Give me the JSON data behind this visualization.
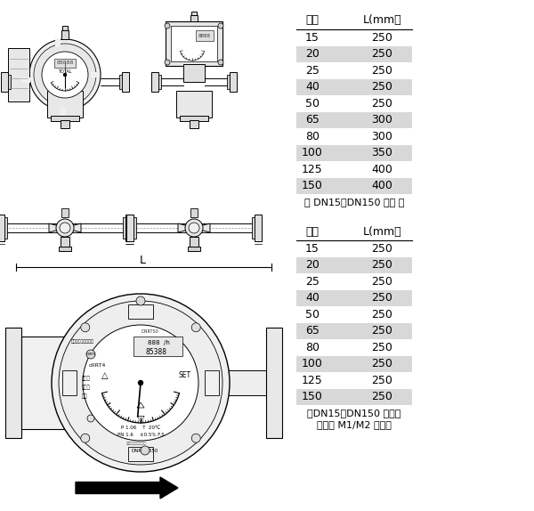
{
  "table1_header": [
    "口径",
    "L(mm）"
  ],
  "table1_rows": [
    [
      "15",
      "250"
    ],
    [
      "20",
      "250"
    ],
    [
      "25",
      "250"
    ],
    [
      "40",
      "250"
    ],
    [
      "50",
      "250"
    ],
    [
      "65",
      "300"
    ],
    [
      "80",
      "300"
    ],
    [
      "100",
      "350"
    ],
    [
      "125",
      "400"
    ],
    [
      "150",
      "400"
    ]
  ],
  "table1_note": "（ DN15～DN150 气体 ）",
  "table2_header": [
    "口径",
    "L(mm）"
  ],
  "table2_rows": [
    [
      "15",
      "250"
    ],
    [
      "20",
      "250"
    ],
    [
      "25",
      "250"
    ],
    [
      "40",
      "250"
    ],
    [
      "50",
      "250"
    ],
    [
      "65",
      "250"
    ],
    [
      "80",
      "250"
    ],
    [
      "100",
      "250"
    ],
    [
      "125",
      "250"
    ],
    [
      "150",
      "250"
    ]
  ],
  "table2_note1": "（DN15～DN150 液体）",
  "table2_note2": "（可选 M1/M2 表头）",
  "shaded_rows": [
    1,
    3,
    5,
    7,
    9
  ],
  "shade_color": "#d8d8d8",
  "bg_color": "#ffffff",
  "text_color": "#000000"
}
